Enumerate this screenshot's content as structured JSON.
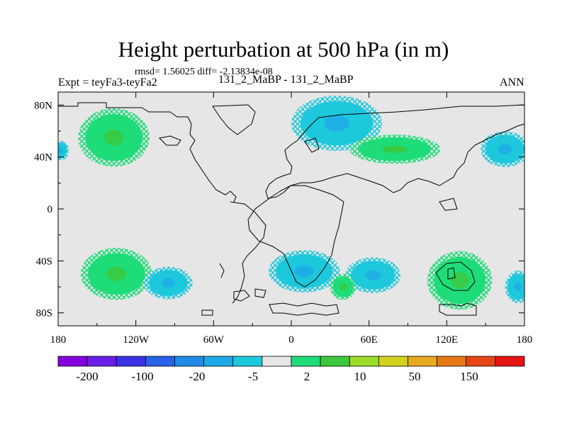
{
  "chart_data": {
    "type": "heatmap",
    "title": "Height perturbation at 500 hPa (in m)",
    "subtitle_stats": "rmsd= 1.56025 diff= -2.13834e-08",
    "left_label": "Expt = teyFa3-teyFa2",
    "center_label": "131_2_MaBP - 131_2_MaBP",
    "right_label": "ANN",
    "x_axis": {
      "range": [
        -180,
        180
      ],
      "ticks": [
        -180,
        -120,
        -60,
        0,
        60,
        120,
        180
      ],
      "tick_labels": [
        "180",
        "120W",
        "60W",
        "0",
        "60E",
        "120E",
        "180"
      ]
    },
    "y_axis": {
      "range": [
        -90,
        90
      ],
      "ticks": [
        80,
        40,
        0,
        -40,
        -80
      ],
      "tick_labels": [
        "80N",
        "40N",
        "0",
        "40S",
        "80S"
      ]
    },
    "colorbar": {
      "colors": [
        "#8200dc",
        "#6a1ee6",
        "#3c32e6",
        "#2862e6",
        "#1e8ce6",
        "#1eaae6",
        "#1ec8dc",
        "#e6e6e6",
        "#1edc78",
        "#3cc83c",
        "#9bdc28",
        "#d2d21e",
        "#e6aa1e",
        "#e67814",
        "#e64614",
        "#e61414"
      ],
      "labels": [
        "-200",
        "-100",
        "-20",
        "-5",
        "2",
        "10",
        "50",
        "150"
      ]
    },
    "anomalies": [
      {
        "lon": -137,
        "lat": 55,
        "rx": 22,
        "ry": 18,
        "kind": "positive"
      },
      {
        "lon": -135,
        "lat": -50,
        "rx": 22,
        "ry": 16,
        "kind": "positive"
      },
      {
        "lon": -95,
        "lat": -57,
        "rx": 15,
        "ry": 10,
        "kind": "negative"
      },
      {
        "lon": 35,
        "lat": 66,
        "rx": 28,
        "ry": 17,
        "kind": "negative"
      },
      {
        "lon": 80,
        "lat": 46,
        "rx": 28,
        "ry": 9,
        "kind": "positive"
      },
      {
        "lon": 10,
        "lat": -48,
        "rx": 22,
        "ry": 13,
        "kind": "negative"
      },
      {
        "lon": 63,
        "lat": -51,
        "rx": 17,
        "ry": 11,
        "kind": "negative"
      },
      {
        "lon": 130,
        "lat": -55,
        "rx": 20,
        "ry": 18,
        "kind": "positive"
      },
      {
        "lon": 165,
        "lat": 46,
        "rx": 15,
        "ry": 11,
        "kind": "negative"
      },
      {
        "lon": 175,
        "lat": -60,
        "rx": 8,
        "ry": 10,
        "kind": "negative"
      },
      {
        "lon": -178,
        "lat": 45,
        "rx": 5,
        "ry": 6,
        "kind": "negative"
      },
      {
        "lon": 40,
        "lat": -60,
        "rx": 8,
        "ry": 8,
        "kind": "positive"
      }
    ]
  }
}
